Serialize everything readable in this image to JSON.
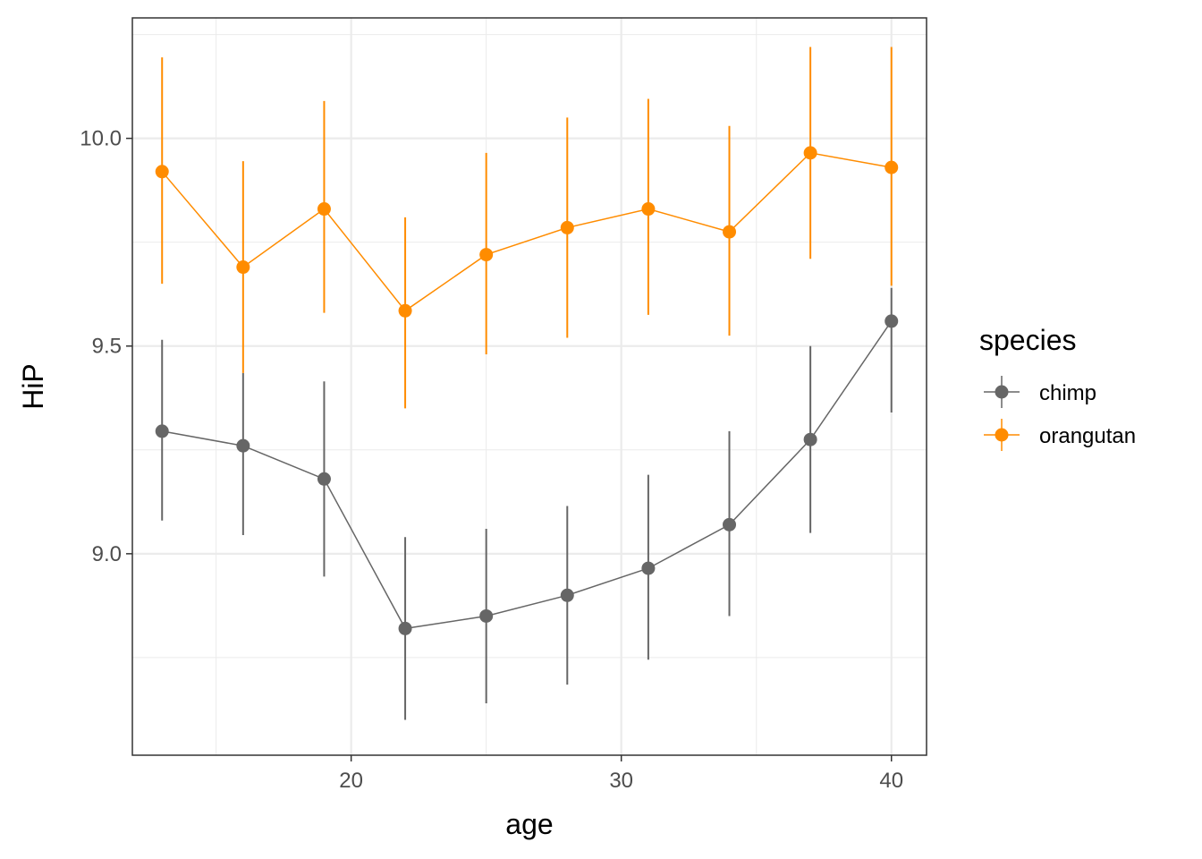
{
  "chart_data": {
    "type": "line",
    "xlabel": "age",
    "ylabel": "HiP",
    "xlim": [
      11.9,
      41.3
    ],
    "ylim": [
      8.515,
      10.29
    ],
    "x_ticks": [
      20,
      30,
      40
    ],
    "x_tick_labels": [
      "20",
      "30",
      "40"
    ],
    "x_minor_ticks": [
      15,
      25,
      35
    ],
    "y_ticks": [
      9.0,
      9.5,
      10.0
    ],
    "y_tick_labels": [
      "9.0",
      "9.5",
      "10.0"
    ],
    "y_minor_ticks": [
      8.75,
      9.25,
      9.75,
      10.25
    ],
    "grid": true,
    "legend": {
      "title": "species",
      "position": "right",
      "entries": [
        "chimp",
        "orangutan"
      ]
    },
    "x": [
      13,
      16,
      19,
      22,
      25,
      28,
      31,
      34,
      37,
      40
    ],
    "series": [
      {
        "name": "chimp",
        "color": "#666666",
        "values": [
          9.295,
          9.26,
          9.18,
          8.82,
          8.85,
          8.9,
          8.965,
          9.07,
          9.275,
          9.56
        ],
        "error_low": [
          9.08,
          9.045,
          8.945,
          8.6,
          8.64,
          8.685,
          8.745,
          8.85,
          9.05,
          9.34
        ],
        "error_high": [
          9.515,
          9.435,
          9.415,
          9.04,
          9.06,
          9.115,
          9.19,
          9.295,
          9.5,
          9.64
        ]
      },
      {
        "name": "orangutan",
        "color": "#ff8c00",
        "values": [
          9.92,
          9.69,
          9.83,
          9.585,
          9.72,
          9.785,
          9.83,
          9.775,
          9.965,
          9.93
        ],
        "error_low": [
          9.65,
          9.435,
          9.58,
          9.35,
          9.48,
          9.52,
          9.575,
          9.525,
          9.71,
          9.645
        ],
        "error_high": [
          10.195,
          9.945,
          10.09,
          9.81,
          9.965,
          10.05,
          10.095,
          10.03,
          10.22,
          10.22
        ]
      }
    ]
  }
}
